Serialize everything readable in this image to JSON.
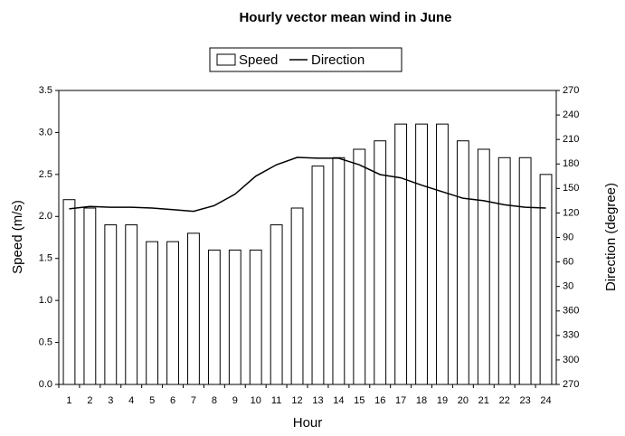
{
  "chart_data": {
    "type": "bar-line",
    "title": "Hourly vector mean wind in June",
    "x_label": "Hour",
    "y_label": "Speed (m/s)",
    "y2_label": "Direction (degree)",
    "categories": [
      "1",
      "2",
      "3",
      "4",
      "5",
      "6",
      "7",
      "8",
      "9",
      "10",
      "11",
      "12",
      "13",
      "14",
      "15",
      "16",
      "17",
      "18",
      "19",
      "20",
      "21",
      "22",
      "23",
      "24"
    ],
    "series": [
      {
        "name": "Speed",
        "type": "bar",
        "color": "#ffffff",
        "values": [
          2.2,
          2.1,
          1.9,
          1.9,
          1.7,
          1.7,
          1.8,
          1.6,
          1.6,
          1.6,
          1.9,
          2.1,
          2.6,
          2.7,
          2.8,
          2.9,
          3.1,
          3.1,
          3.1,
          2.9,
          2.8,
          2.7,
          2.7,
          2.5
        ]
      },
      {
        "name": "Direction",
        "type": "line",
        "color": "#000000",
        "axis": "y2",
        "values": [
          485,
          488,
          487,
          487,
          486,
          484,
          482,
          489,
          503,
          525,
          539,
          548,
          547,
          547,
          539,
          527,
          523,
          514,
          506,
          498,
          495,
          490,
          487,
          486
        ]
      }
    ],
    "ylim": [
      0,
      3.5
    ],
    "yticks": [
      {
        "value": 0,
        "label": "0.0"
      },
      0.5,
      {
        "value": 1,
        "label": "1.0"
      },
      1.5,
      {
        "value": 2,
        "label": "2.0"
      },
      2.5,
      {
        "value": 3,
        "label": "3.0"
      },
      3.5
    ],
    "y2lim": [
      270,
      630
    ],
    "y2ticks": [
      270,
      300,
      330,
      360,
      {
        "value": 390,
        "label": "30"
      },
      {
        "value": 420,
        "label": "60"
      },
      {
        "value": 450,
        "label": "90"
      },
      {
        "value": 480,
        "label": "120"
      },
      {
        "value": 510,
        "label": "150"
      },
      {
        "value": 540,
        "label": "180"
      },
      {
        "value": 570,
        "label": "210"
      },
      {
        "value": 600,
        "label": "240"
      },
      {
        "value": 630,
        "label": "270"
      }
    ],
    "legend": "top"
  }
}
